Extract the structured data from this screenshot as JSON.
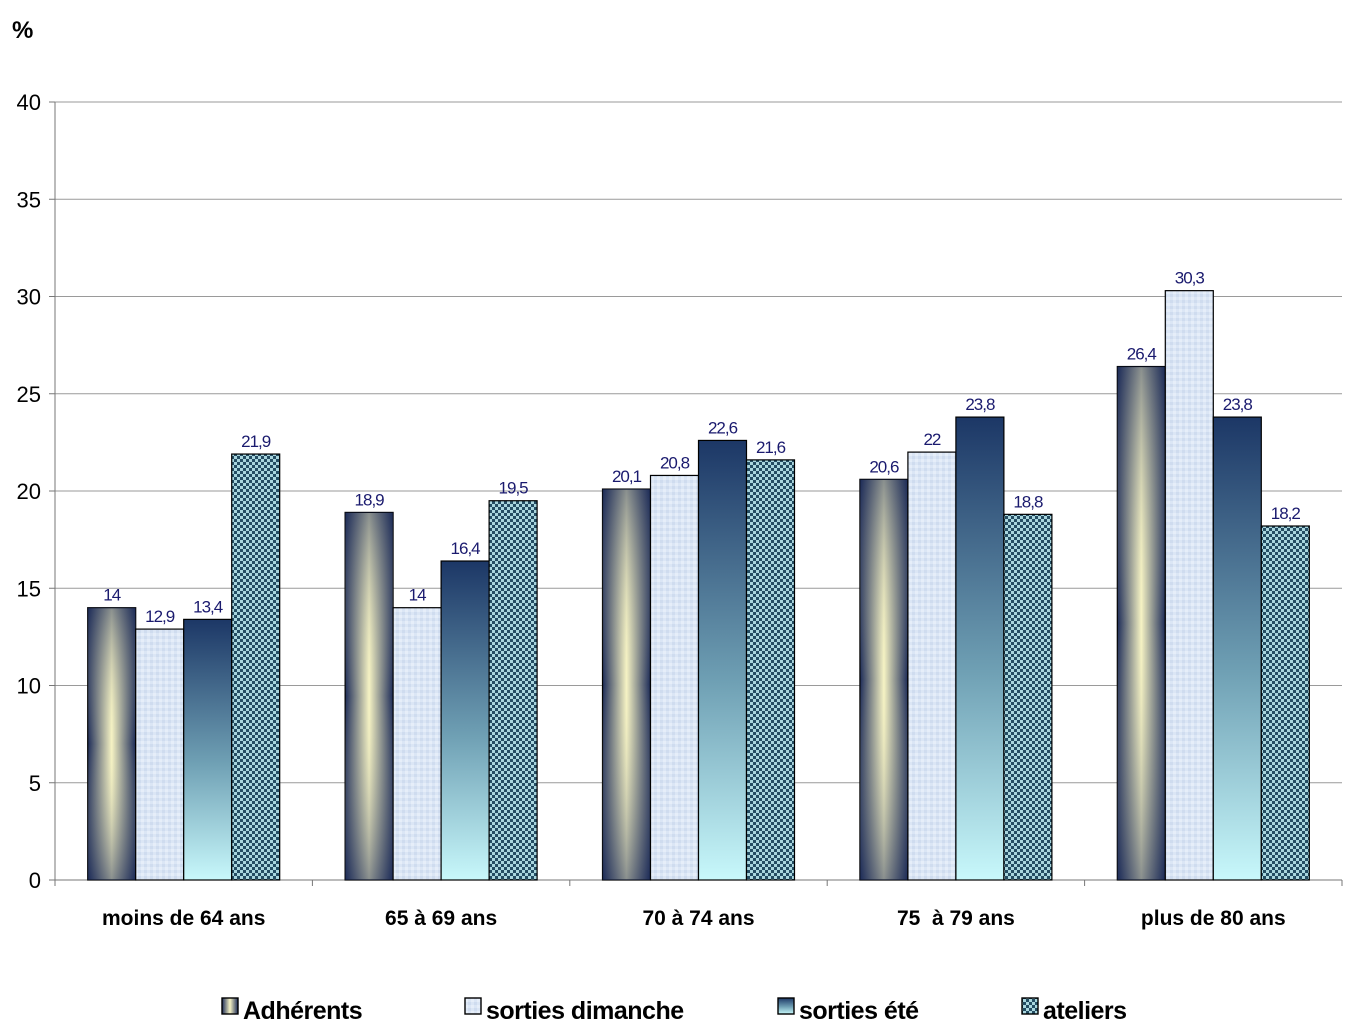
{
  "chart_data": {
    "type": "bar",
    "ylabel": "%",
    "ylim": [
      0,
      40
    ],
    "yticks": [
      0,
      5,
      10,
      15,
      20,
      25,
      30,
      35,
      40
    ],
    "grid": true,
    "legend_position": "bottom",
    "categories": [
      "moins de 64 ans",
      "65 à 69 ans",
      "70 à 74 ans",
      "75  à 79 ans",
      "plus de 80 ans"
    ],
    "series": [
      {
        "name": "Adhérents",
        "values": [
          14,
          18.9,
          20.1,
          20.6,
          26.4
        ],
        "labels": [
          "14",
          "18,9",
          "20,1",
          "20,6",
          "26,4"
        ],
        "fill": "gradient-yellow-navy"
      },
      {
        "name": "sorties dimanche",
        "values": [
          12.9,
          14,
          20.8,
          22,
          30.3
        ],
        "labels": [
          "12,9",
          "14",
          "20,8",
          "22",
          "30,3"
        ],
        "fill": "light-blue-texture"
      },
      {
        "name": "sorties été",
        "values": [
          13.4,
          16.4,
          22.6,
          23.8,
          23.8
        ],
        "labels": [
          "13,4",
          "16,4",
          "22,6",
          "23,8",
          "23,8"
        ],
        "fill": "gradient-navy-cyan"
      },
      {
        "name": "ateliers",
        "values": [
          21.9,
          19.5,
          21.6,
          18.8,
          18.2
        ],
        "labels": [
          "21,9",
          "19,5",
          "21,6",
          "18,8",
          "18,2"
        ],
        "fill": "checker-teal"
      }
    ]
  }
}
